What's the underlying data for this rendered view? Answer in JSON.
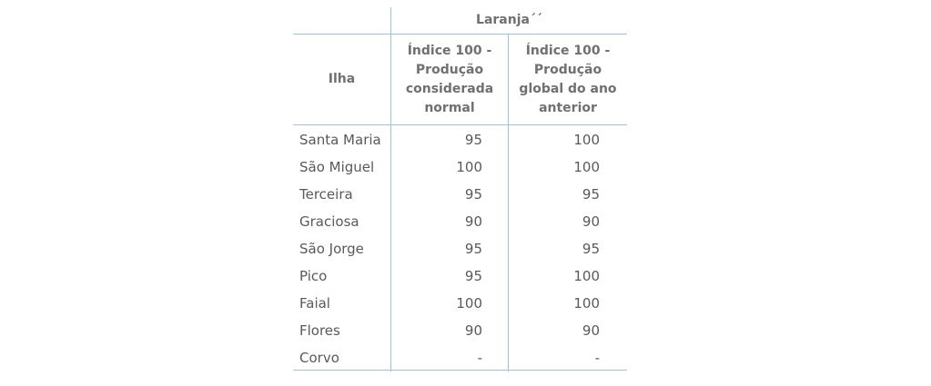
{
  "table": {
    "group_header": "Laranja´´",
    "col_ilha": "Ilha",
    "col_1": "Índice 100 - Produção considerada normal",
    "col_1_lines": [
      "Índice 100 -",
      "Produção",
      "considerada",
      "normal"
    ],
    "col_2": "Índice 100 - Produção global do ano anterior",
    "col_2_lines": [
      "Índice 100 -",
      "Produção",
      "global do ano",
      "anterior"
    ],
    "rows": [
      {
        "ilha": "Santa Maria",
        "normal": "95",
        "anterior": "100"
      },
      {
        "ilha": "São Miguel",
        "normal": "100",
        "anterior": "100"
      },
      {
        "ilha": "Terceira",
        "normal": "95",
        "anterior": "95"
      },
      {
        "ilha": "Graciosa",
        "normal": "90",
        "anterior": "90"
      },
      {
        "ilha": "São Jorge",
        "normal": "95",
        "anterior": "95"
      },
      {
        "ilha": "Pico",
        "normal": "95",
        "anterior": "100"
      },
      {
        "ilha": "Faial",
        "normal": "100",
        "anterior": "100"
      },
      {
        "ilha": "Flores",
        "normal": "90",
        "anterior": "90"
      },
      {
        "ilha": "Corvo",
        "normal": "-",
        "anterior": "-"
      }
    ]
  }
}
